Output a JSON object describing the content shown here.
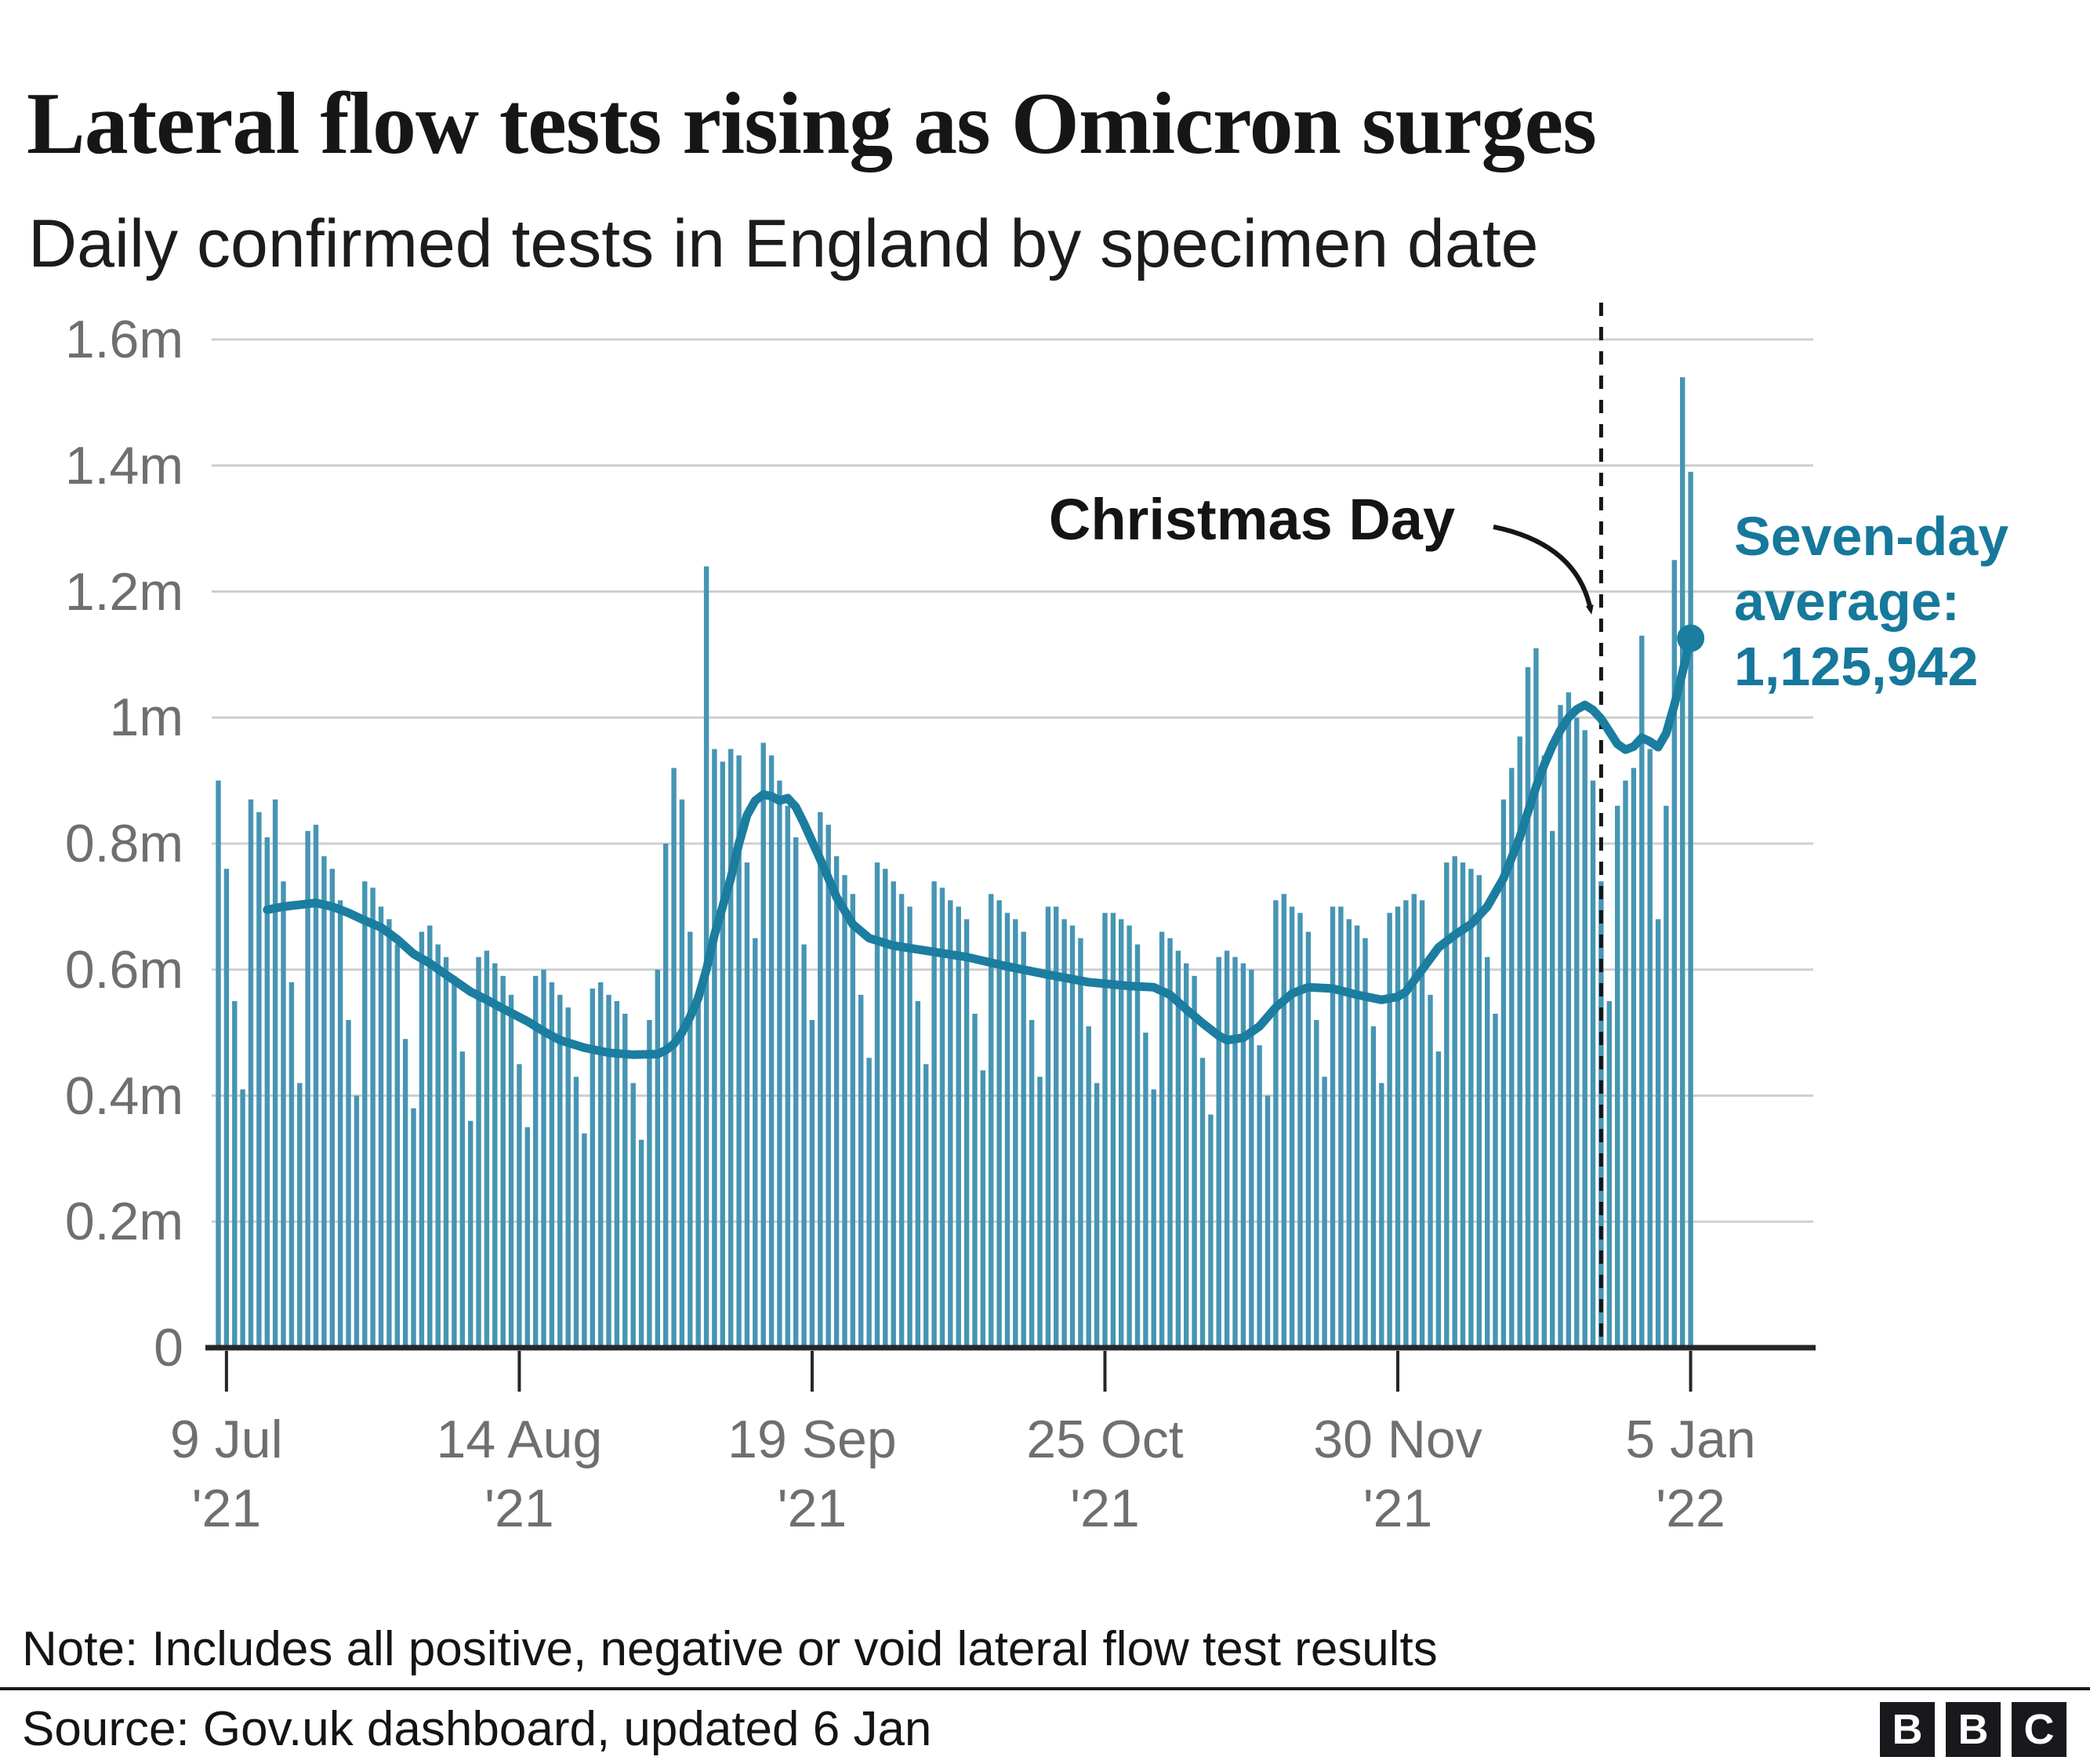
{
  "header": {
    "title": "Lateral flow tests rising as Omicron surges",
    "subtitle": "Daily confirmed tests in England by specimen date"
  },
  "annotations": {
    "christmas_label": "Christmas Day",
    "avg_line1": "Seven-day",
    "avg_line2": "average:",
    "avg_line3": "1,125,942"
  },
  "footer": {
    "note": "Note: Includes all positive, negative or void lateral flow test results",
    "source": "Source: Gov.uk dashboard, updated 6 Jan",
    "logo_letters": [
      "B",
      "B",
      "C"
    ]
  },
  "colors": {
    "bar": "#4695b3",
    "avg_line": "#1b7d9f",
    "avg_text": "#16789b",
    "grid": "#cfcfcf",
    "axis": "#262626",
    "axis_label": "#6f6f72",
    "annotation": "#161616"
  },
  "chart_data": {
    "type": "bar",
    "title": "Lateral flow tests rising as Omicron surges",
    "subtitle": "Daily confirmed tests in England by specimen date",
    "unit": "millions of tests per day",
    "ylim": [
      0,
      1.6
    ],
    "grid": true,
    "y_ticks": [
      {
        "label": "1.6m",
        "value": 1.6
      },
      {
        "label": "1.4m",
        "value": 1.4
      },
      {
        "label": "1.2m",
        "value": 1.2
      },
      {
        "label": "1m",
        "value": 1.0
      },
      {
        "label": "0.8m",
        "value": 0.8
      },
      {
        "label": "0.6m",
        "value": 0.6
      },
      {
        "label": "0.4m",
        "value": 0.4
      },
      {
        "label": "0.2m",
        "value": 0.2
      },
      {
        "label": "0",
        "value": 0
      }
    ],
    "x_ticks": [
      {
        "line1": "9 Jul",
        "line2": "'21",
        "day": 1
      },
      {
        "line1": "14 Aug",
        "line2": "'21",
        "day": 37
      },
      {
        "line1": "19 Sep",
        "line2": "'21",
        "day": 73
      },
      {
        "line1": "25 Oct",
        "line2": "'21",
        "day": 109
      },
      {
        "line1": "30 Nov",
        "line2": "'21",
        "day": 145
      },
      {
        "line1": "5 Jan",
        "line2": "'22",
        "day": 181
      }
    ],
    "bars": {
      "name": "Daily confirmed lateral flow tests (millions)",
      "start_label": "8 Jul '21",
      "values": [
        0.9,
        0.76,
        0.55,
        0.41,
        0.87,
        0.85,
        0.81,
        0.87,
        0.74,
        0.58,
        0.42,
        0.82,
        0.83,
        0.78,
        0.76,
        0.71,
        0.52,
        0.4,
        0.74,
        0.73,
        0.7,
        0.68,
        0.64,
        0.49,
        0.38,
        0.66,
        0.67,
        0.64,
        0.62,
        0.59,
        0.47,
        0.36,
        0.62,
        0.63,
        0.61,
        0.59,
        0.56,
        0.45,
        0.35,
        0.59,
        0.6,
        0.58,
        0.56,
        0.54,
        0.43,
        0.34,
        0.57,
        0.58,
        0.56,
        0.55,
        0.53,
        0.42,
        0.33,
        0.52,
        0.6,
        0.8,
        0.92,
        0.87,
        0.66,
        0.56,
        1.24,
        0.95,
        0.93,
        0.95,
        0.94,
        0.77,
        0.65,
        0.96,
        0.94,
        0.9,
        0.86,
        0.81,
        0.64,
        0.52,
        0.85,
        0.83,
        0.78,
        0.75,
        0.72,
        0.56,
        0.46,
        0.77,
        0.76,
        0.74,
        0.72,
        0.7,
        0.55,
        0.45,
        0.74,
        0.73,
        0.71,
        0.7,
        0.68,
        0.53,
        0.44,
        0.72,
        0.71,
        0.69,
        0.68,
        0.66,
        0.52,
        0.43,
        0.7,
        0.7,
        0.68,
        0.67,
        0.65,
        0.51,
        0.42,
        0.69,
        0.69,
        0.68,
        0.67,
        0.64,
        0.5,
        0.41,
        0.66,
        0.65,
        0.63,
        0.61,
        0.59,
        0.46,
        0.37,
        0.62,
        0.63,
        0.62,
        0.61,
        0.6,
        0.48,
        0.4,
        0.71,
        0.72,
        0.7,
        0.69,
        0.66,
        0.52,
        0.43,
        0.7,
        0.7,
        0.68,
        0.67,
        0.65,
        0.51,
        0.42,
        0.69,
        0.7,
        0.71,
        0.72,
        0.71,
        0.56,
        0.47,
        0.77,
        0.78,
        0.77,
        0.76,
        0.75,
        0.62,
        0.53,
        0.87,
        0.92,
        0.97,
        1.08,
        1.11,
        0.94,
        0.82,
        1.02,
        1.04,
        1.0,
        0.98,
        0.9,
        0.74,
        0.55,
        0.86,
        0.9,
        0.92,
        1.13,
        0.95,
        0.68,
        0.86,
        1.25,
        1.54,
        1.39
      ]
    },
    "avg_series": {
      "name": "Seven-day average",
      "end_value": 1125942,
      "points": [
        [
          6,
          0.695
        ],
        [
          8,
          0.7
        ],
        [
          10,
          0.703
        ],
        [
          12,
          0.706
        ],
        [
          14,
          0.7
        ],
        [
          16,
          0.69
        ],
        [
          18,
          0.678
        ],
        [
          20,
          0.667
        ],
        [
          22,
          0.648
        ],
        [
          24,
          0.625
        ],
        [
          26,
          0.61
        ],
        [
          28,
          0.592
        ],
        [
          31,
          0.565
        ],
        [
          33,
          0.552
        ],
        [
          35,
          0.538
        ],
        [
          38,
          0.518
        ],
        [
          40,
          0.502
        ],
        [
          42,
          0.488
        ],
        [
          45,
          0.476
        ],
        [
          48,
          0.468
        ],
        [
          51,
          0.465
        ],
        [
          54,
          0.466
        ],
        [
          55,
          0.472
        ],
        [
          56,
          0.482
        ],
        [
          57,
          0.5
        ],
        [
          58,
          0.525
        ],
        [
          59,
          0.555
        ],
        [
          60,
          0.6
        ],
        [
          61,
          0.655
        ],
        [
          62,
          0.7
        ],
        [
          63,
          0.745
        ],
        [
          64,
          0.8
        ],
        [
          65,
          0.845
        ],
        [
          66,
          0.868
        ],
        [
          67,
          0.878
        ],
        [
          68,
          0.875
        ],
        [
          69,
          0.868
        ],
        [
          70,
          0.872
        ],
        [
          71,
          0.858
        ],
        [
          72,
          0.832
        ],
        [
          74,
          0.775
        ],
        [
          76,
          0.715
        ],
        [
          78,
          0.672
        ],
        [
          80,
          0.65
        ],
        [
          83,
          0.638
        ],
        [
          87,
          0.63
        ],
        [
          92,
          0.62
        ],
        [
          97,
          0.605
        ],
        [
          102,
          0.592
        ],
        [
          107,
          0.58
        ],
        [
          112,
          0.574
        ],
        [
          115,
          0.572
        ],
        [
          117,
          0.56
        ],
        [
          119,
          0.537
        ],
        [
          121,
          0.515
        ],
        [
          123,
          0.495
        ],
        [
          124,
          0.488
        ],
        [
          126,
          0.492
        ],
        [
          128,
          0.51
        ],
        [
          130,
          0.54
        ],
        [
          132,
          0.562
        ],
        [
          134,
          0.572
        ],
        [
          137,
          0.57
        ],
        [
          140,
          0.56
        ],
        [
          143,
          0.552
        ],
        [
          145,
          0.557
        ],
        [
          146,
          0.565
        ],
        [
          148,
          0.6
        ],
        [
          150,
          0.635
        ],
        [
          152,
          0.655
        ],
        [
          154,
          0.672
        ],
        [
          156,
          0.7
        ],
        [
          158,
          0.745
        ],
        [
          160,
          0.81
        ],
        [
          161,
          0.85
        ],
        [
          162,
          0.89
        ],
        [
          163,
          0.925
        ],
        [
          164,
          0.955
        ],
        [
          165,
          0.98
        ],
        [
          166,
          1.0
        ],
        [
          167,
          1.013
        ],
        [
          168,
          1.02
        ],
        [
          169,
          1.012
        ],
        [
          170,
          0.998
        ],
        [
          171,
          0.978
        ],
        [
          172,
          0.958
        ],
        [
          173,
          0.949
        ],
        [
          174,
          0.954
        ],
        [
          175,
          0.968
        ],
        [
          176,
          0.962
        ],
        [
          177,
          0.953
        ],
        [
          178,
          0.975
        ],
        [
          179,
          1.02
        ],
        [
          180,
          1.072
        ],
        [
          181,
          1.126
        ]
      ]
    },
    "christmas_day_index": 170,
    "legend_position": "none"
  }
}
